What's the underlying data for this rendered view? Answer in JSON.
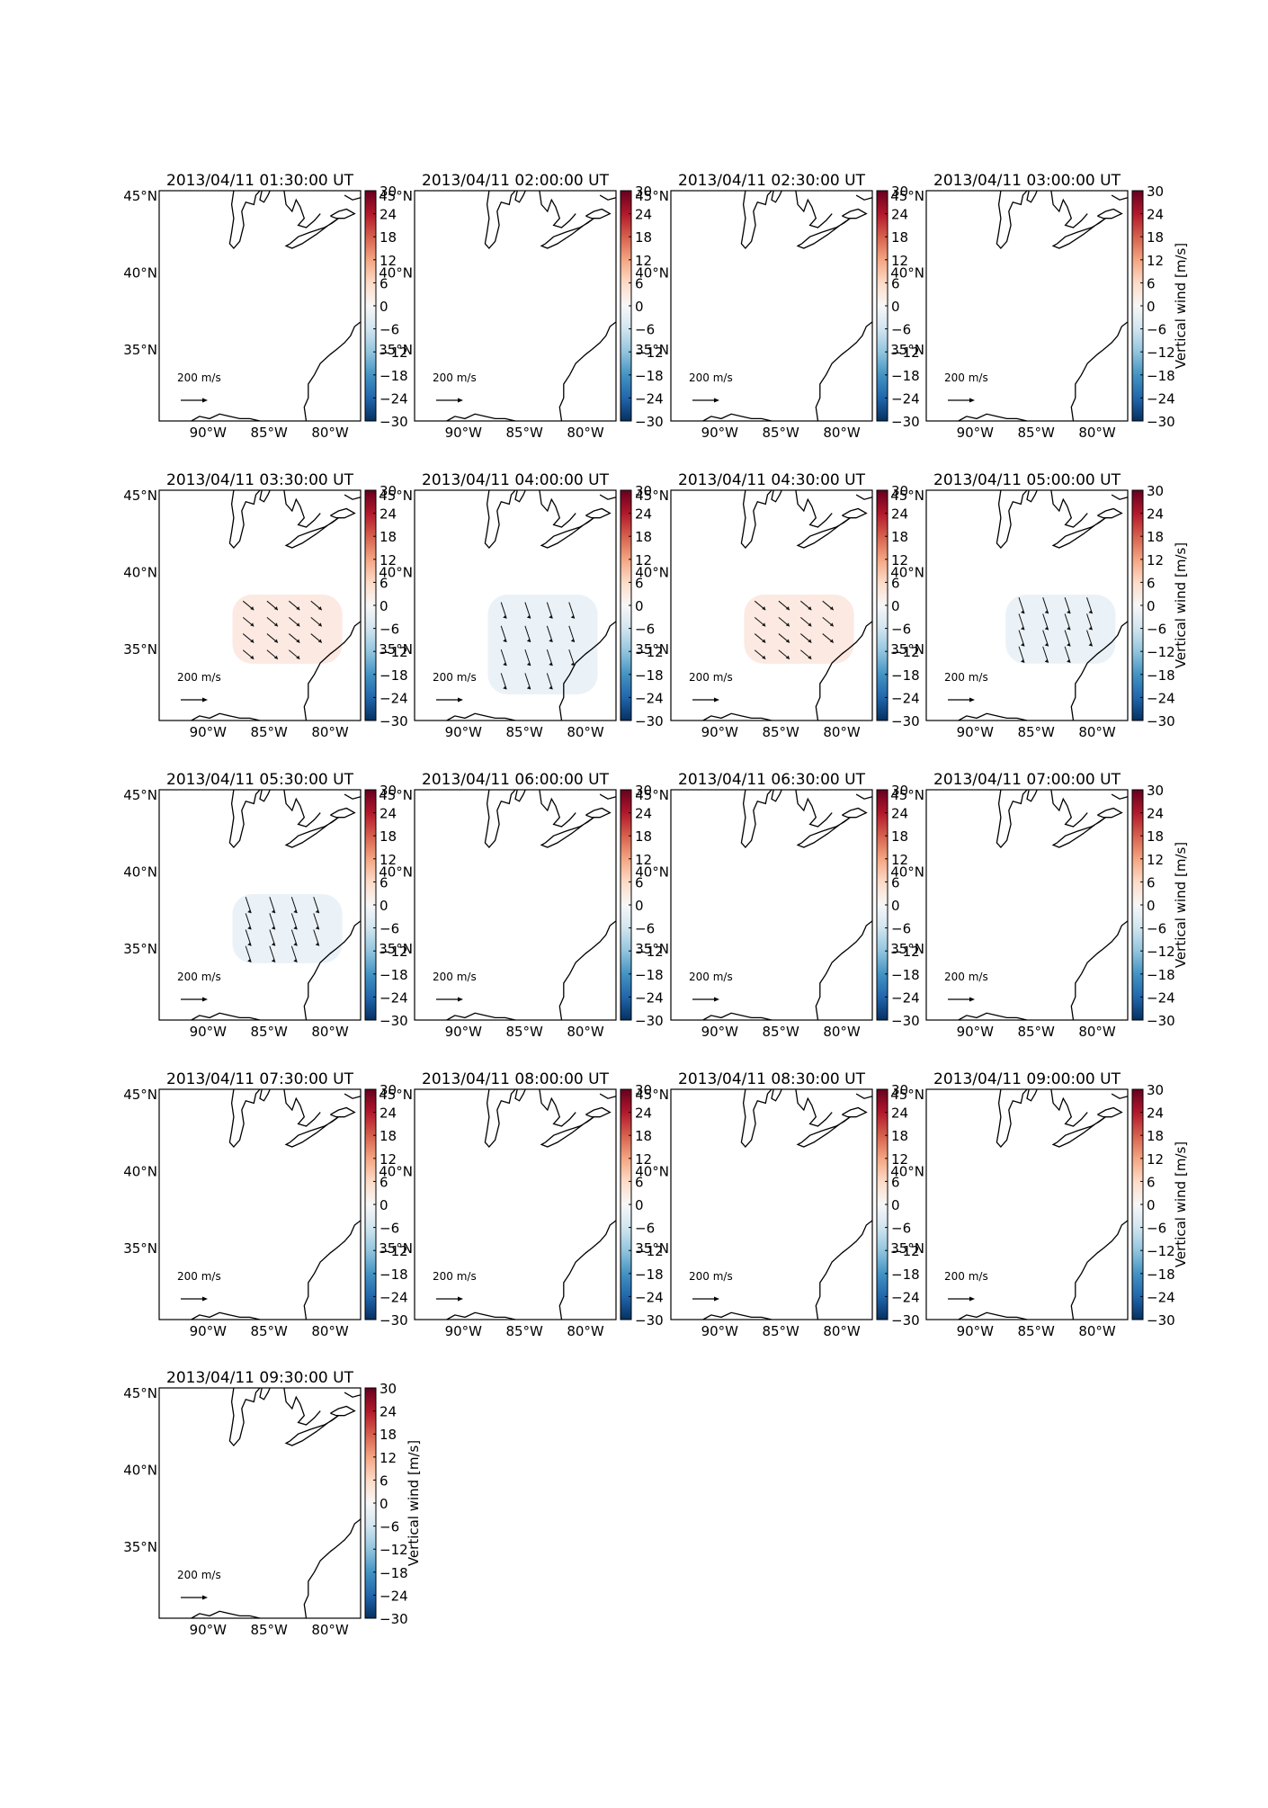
{
  "figure": {
    "colorbar_label": "Vertical wind [m/s]",
    "colorbar_ticks": [
      30,
      24,
      18,
      12,
      6,
      0,
      -6,
      -12,
      -18,
      -24,
      -30
    ],
    "colormap": [
      "#053061",
      "#2166ac",
      "#4393c3",
      "#92c5de",
      "#d1e5f0",
      "#f7f7f7",
      "#fddbc7",
      "#f4a582",
      "#d6604d",
      "#b2182b",
      "#67001f"
    ],
    "lat_ticks": [
      "45°N",
      "40°N",
      "35°N"
    ],
    "lon_ticks": [
      "90°W",
      "85°W",
      "80°W"
    ],
    "quiver_key": "200 m/s"
  },
  "chart_data": [
    {
      "type": "heatmap",
      "title": "2013/04/11 01:30:00 UT",
      "anomaly": null
    },
    {
      "type": "heatmap",
      "title": "2013/04/11 02:00:00 UT",
      "anomaly": null
    },
    {
      "type": "heatmap",
      "title": "2013/04/11 02:30:00 UT",
      "anomaly": null
    },
    {
      "type": "heatmap",
      "title": "2013/04/11 03:00:00 UT",
      "anomaly": null
    },
    {
      "type": "heatmap",
      "title": "2013/04/11 03:30:00 UT",
      "anomaly": {
        "sign": "positive",
        "value": 3,
        "lon": [
          -88,
          -79
        ],
        "lat": [
          34,
          38.5
        ]
      }
    },
    {
      "type": "heatmap",
      "title": "2013/04/11 04:00:00 UT",
      "anomaly": {
        "sign": "negative",
        "value": -3,
        "lon": [
          -88,
          -79
        ],
        "lat": [
          32,
          38.5
        ]
      }
    },
    {
      "type": "heatmap",
      "title": "2013/04/11 04:30:00 UT",
      "anomaly": {
        "sign": "positive",
        "value": 3,
        "lon": [
          -88,
          -79
        ],
        "lat": [
          34,
          38.5
        ]
      }
    },
    {
      "type": "heatmap",
      "title": "2013/04/11 05:00:00 UT",
      "anomaly": {
        "sign": "negative",
        "value": -3,
        "lon": [
          -87.5,
          -78.5
        ],
        "lat": [
          34,
          38.5
        ]
      }
    },
    {
      "type": "heatmap",
      "title": "2013/04/11 05:30:00 UT",
      "anomaly": {
        "sign": "negative",
        "value": -3,
        "lon": [
          -88,
          -79
        ],
        "lat": [
          34,
          38.5
        ]
      }
    },
    {
      "type": "heatmap",
      "title": "2013/04/11 06:00:00 UT",
      "anomaly": null
    },
    {
      "type": "heatmap",
      "title": "2013/04/11 06:30:00 UT",
      "anomaly": null
    },
    {
      "type": "heatmap",
      "title": "2013/04/11 07:00:00 UT",
      "anomaly": null
    },
    {
      "type": "heatmap",
      "title": "2013/04/11 07:30:00 UT",
      "anomaly": null
    },
    {
      "type": "heatmap",
      "title": "2013/04/11 08:00:00 UT",
      "anomaly": null
    },
    {
      "type": "heatmap",
      "title": "2013/04/11 08:30:00 UT",
      "anomaly": null
    },
    {
      "type": "heatmap",
      "title": "2013/04/11 09:00:00 UT",
      "anomaly": null
    },
    {
      "type": "heatmap",
      "title": "2013/04/11 09:30:00 UT",
      "anomaly": null
    }
  ]
}
